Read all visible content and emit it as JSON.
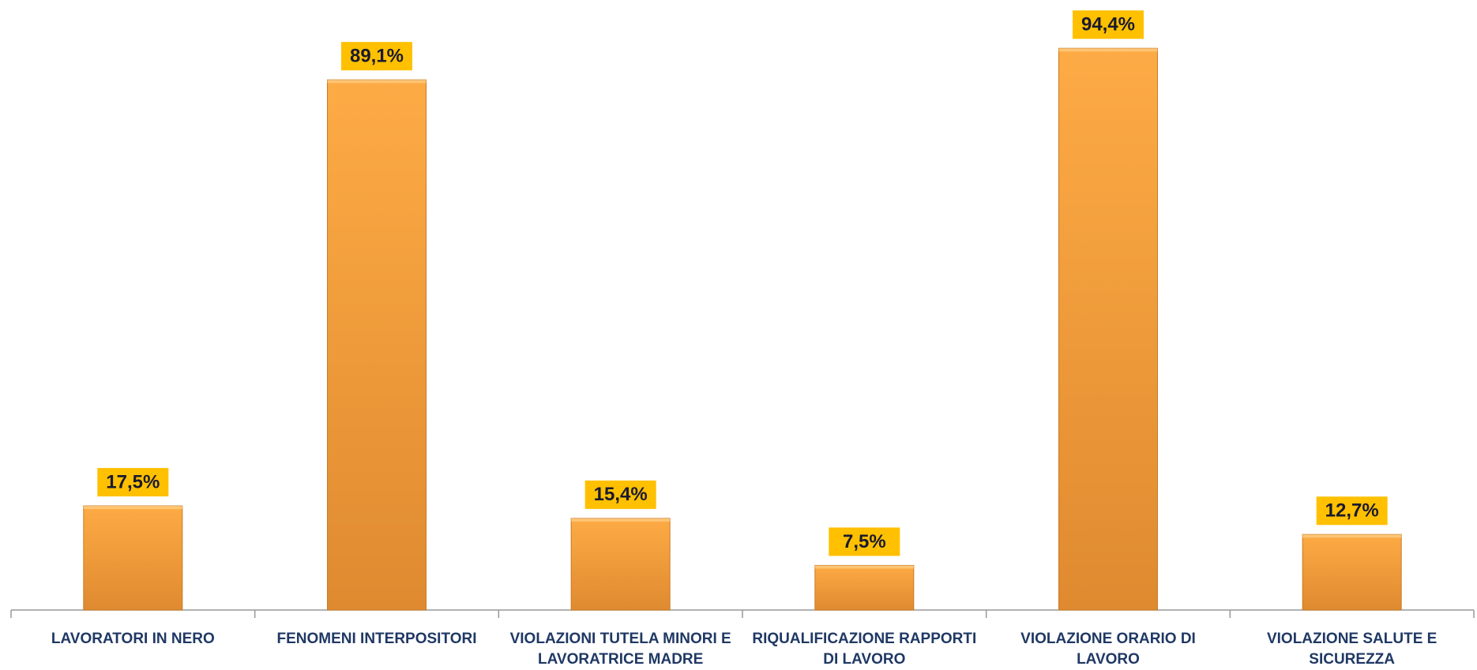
{
  "chart_data": {
    "type": "bar",
    "categories": [
      "LAVORATORI IN NERO",
      "FENOMENI INTERPOSITORI",
      "VIOLAZIONI TUTELA MINORI E LAVORATRICE MADRE",
      "RIQUALIFICAZIONE RAPPORTI DI LAVORO",
      "VIOLAZIONE ORARIO DI LAVORO",
      "VIOLAZIONE SALUTE E SICUREZZA"
    ],
    "values": [
      17.5,
      89.1,
      15.4,
      7.5,
      94.4,
      12.7
    ],
    "value_labels": [
      "17,5%",
      "89,1%",
      "15,4%",
      "7,5%",
      "94,4%",
      "12,7%"
    ],
    "color": "#f5a03a",
    "label_box_color": "#ffc000"
  }
}
